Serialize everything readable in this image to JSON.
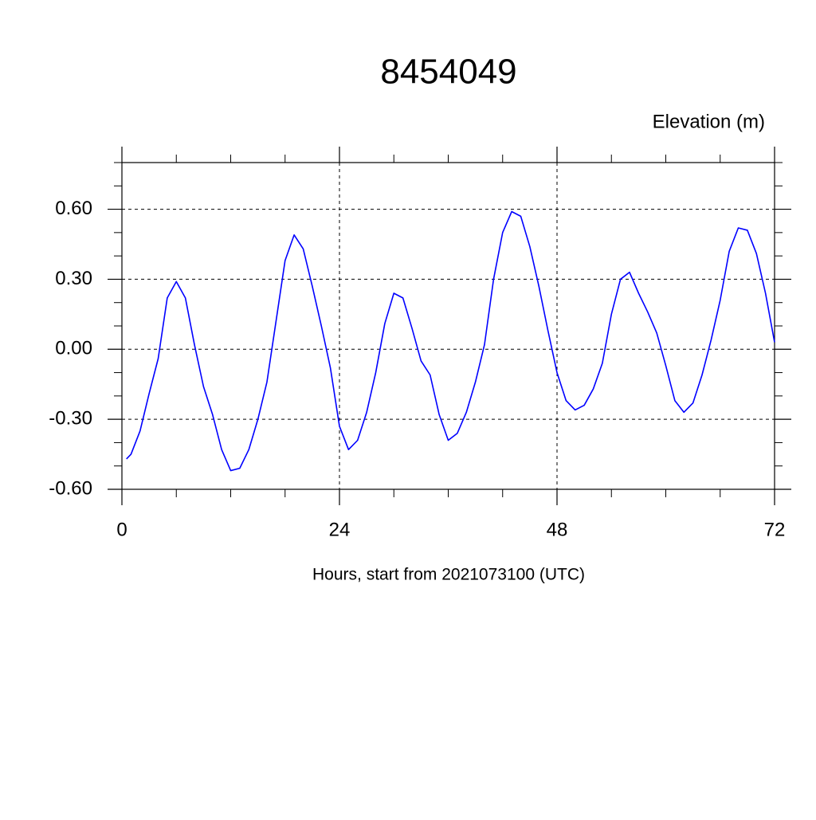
{
  "chart_data": {
    "type": "line",
    "title": "8454049",
    "y_label": "Elevation (m)",
    "x_label": "Hours, start from 2021073100 (UTC)",
    "x": [
      0.5,
      1,
      2,
      3,
      4,
      5,
      6,
      7,
      8,
      9,
      10,
      11,
      12,
      13,
      14,
      15,
      16,
      17,
      18,
      19,
      20,
      21,
      22,
      23,
      24,
      25,
      26,
      27,
      28,
      29,
      30,
      31,
      32,
      33,
      34,
      35,
      36,
      37,
      38,
      39,
      40,
      41,
      42,
      43,
      44,
      45,
      46,
      47,
      48,
      49,
      50,
      51,
      52,
      53,
      54,
      55,
      56,
      57,
      58,
      59,
      60,
      61,
      62,
      63,
      64,
      65,
      66,
      67,
      68,
      69,
      70,
      71,
      72
    ],
    "series": [
      {
        "color": "#0000ff",
        "values": [
          -0.47,
          -0.45,
          -0.35,
          -0.19,
          -0.04,
          0.22,
          0.29,
          0.22,
          0.02,
          -0.16,
          -0.28,
          -0.43,
          -0.52,
          -0.51,
          -0.43,
          -0.3,
          -0.14,
          0.12,
          0.38,
          0.49,
          0.43,
          0.27,
          0.1,
          -0.08,
          -0.33,
          -0.43,
          -0.39,
          -0.27,
          -0.1,
          0.11,
          0.24,
          0.22,
          0.09,
          -0.05,
          -0.11,
          -0.28,
          -0.39,
          -0.36,
          -0.27,
          -0.14,
          0.02,
          0.3,
          0.5,
          0.59,
          0.57,
          0.44,
          0.27,
          0.08,
          -0.1,
          -0.22,
          -0.26,
          -0.24,
          -0.17,
          -0.06,
          0.15,
          0.3,
          0.33,
          0.24,
          0.16,
          0.07,
          -0.07,
          -0.22,
          -0.27,
          -0.23,
          -0.11,
          0.04,
          0.21,
          0.42,
          0.52,
          0.51,
          0.41,
          0.24,
          0.03
        ]
      }
    ],
    "xlim": [
      0,
      72
    ],
    "ylim": [
      -0.6,
      0.8
    ],
    "xticks": [
      0,
      24,
      48,
      72
    ],
    "yticks": [
      {
        "value": -0.6,
        "label": "-0.60"
      },
      {
        "value": -0.3,
        "label": "-0.30"
      },
      {
        "value": 0,
        "label": "0.00"
      },
      {
        "value": 0.3,
        "label": "0.30"
      },
      {
        "value": 0.6,
        "label": "0.60"
      }
    ],
    "x_minor_ticks": [
      6,
      12,
      18,
      30,
      36,
      42,
      54,
      60,
      66
    ],
    "y_minor_ticks": [
      -0.5,
      -0.4,
      -0.2,
      -0.1,
      0.1,
      0.2,
      0.4,
      0.5,
      0.7,
      0.8
    ],
    "grid": true
  }
}
